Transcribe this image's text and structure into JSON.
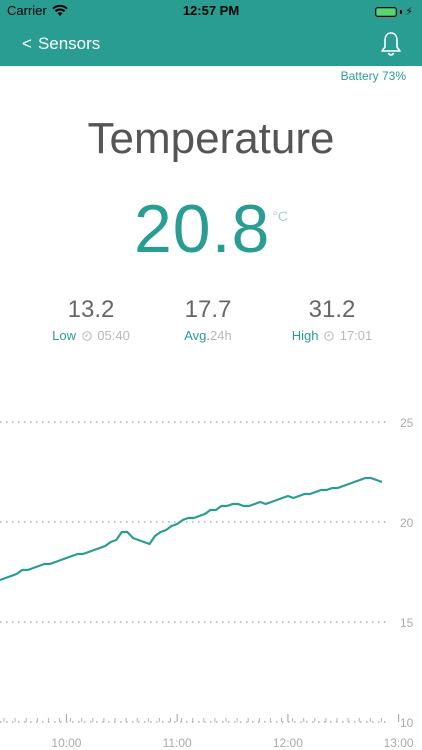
{
  "status_bar": {
    "carrier": "Carrier",
    "time": "12:57 PM"
  },
  "nav": {
    "back_label": "Sensors"
  },
  "battery_label": "Battery 73%",
  "sensor": {
    "title": "Temperature",
    "value": "20.8",
    "unit": "°C"
  },
  "stats": {
    "low": {
      "value": "13.2",
      "label": "Low",
      "time": "05:40"
    },
    "avg": {
      "value": "17.7",
      "label": "Avg.",
      "period": "24h"
    },
    "high": {
      "value": "31.2",
      "label": "High",
      "time": "17:01"
    }
  },
  "colors": {
    "accent": "#2a9d93",
    "grid": "#b0b0b0",
    "tick_text": "#aaaaaa"
  },
  "chart_data": {
    "type": "line",
    "y_ticks": [
      25,
      20,
      15,
      10
    ],
    "x_ticks": [
      "10:00",
      "11:00",
      "12:00",
      "13:00"
    ],
    "ylim": [
      10,
      25
    ],
    "x_hours_range": [
      9.4,
      12.85
    ],
    "series": [
      {
        "points": [
          [
            9.4,
            17.1
          ],
          [
            9.45,
            17.2
          ],
          [
            9.5,
            17.3
          ],
          [
            9.55,
            17.4
          ],
          [
            9.6,
            17.6
          ],
          [
            9.65,
            17.6
          ],
          [
            9.7,
            17.7
          ],
          [
            9.75,
            17.8
          ],
          [
            9.8,
            17.9
          ],
          [
            9.85,
            17.9
          ],
          [
            9.9,
            18.0
          ],
          [
            9.95,
            18.1
          ],
          [
            10.0,
            18.2
          ],
          [
            10.05,
            18.3
          ],
          [
            10.1,
            18.4
          ],
          [
            10.15,
            18.4
          ],
          [
            10.2,
            18.5
          ],
          [
            10.25,
            18.6
          ],
          [
            10.3,
            18.7
          ],
          [
            10.35,
            18.8
          ],
          [
            10.4,
            19.0
          ],
          [
            10.45,
            19.1
          ],
          [
            10.5,
            19.5
          ],
          [
            10.55,
            19.5
          ],
          [
            10.6,
            19.2
          ],
          [
            10.65,
            19.1
          ],
          [
            10.7,
            19.0
          ],
          [
            10.75,
            18.9
          ],
          [
            10.8,
            19.3
          ],
          [
            10.85,
            19.5
          ],
          [
            10.9,
            19.6
          ],
          [
            10.95,
            19.8
          ],
          [
            11.0,
            19.9
          ],
          [
            11.05,
            20.1
          ],
          [
            11.1,
            20.2
          ],
          [
            11.15,
            20.2
          ],
          [
            11.2,
            20.3
          ],
          [
            11.25,
            20.4
          ],
          [
            11.3,
            20.6
          ],
          [
            11.35,
            20.6
          ],
          [
            11.4,
            20.8
          ],
          [
            11.45,
            20.8
          ],
          [
            11.5,
            20.9
          ],
          [
            11.55,
            20.9
          ],
          [
            11.6,
            20.8
          ],
          [
            11.65,
            20.8
          ],
          [
            11.7,
            20.9
          ],
          [
            11.75,
            21.0
          ],
          [
            11.8,
            20.9
          ],
          [
            11.85,
            21.0
          ],
          [
            11.9,
            21.1
          ],
          [
            11.95,
            21.2
          ],
          [
            12.0,
            21.3
          ],
          [
            12.05,
            21.2
          ],
          [
            12.1,
            21.3
          ],
          [
            12.15,
            21.4
          ],
          [
            12.2,
            21.4
          ],
          [
            12.25,
            21.5
          ],
          [
            12.3,
            21.6
          ],
          [
            12.35,
            21.6
          ],
          [
            12.4,
            21.7
          ],
          [
            12.45,
            21.7
          ],
          [
            12.5,
            21.8
          ],
          [
            12.55,
            21.9
          ],
          [
            12.6,
            22.0
          ],
          [
            12.65,
            22.1
          ],
          [
            12.7,
            22.2
          ],
          [
            12.75,
            22.2
          ],
          [
            12.8,
            22.1
          ],
          [
            12.85,
            22.0
          ]
        ]
      }
    ]
  }
}
